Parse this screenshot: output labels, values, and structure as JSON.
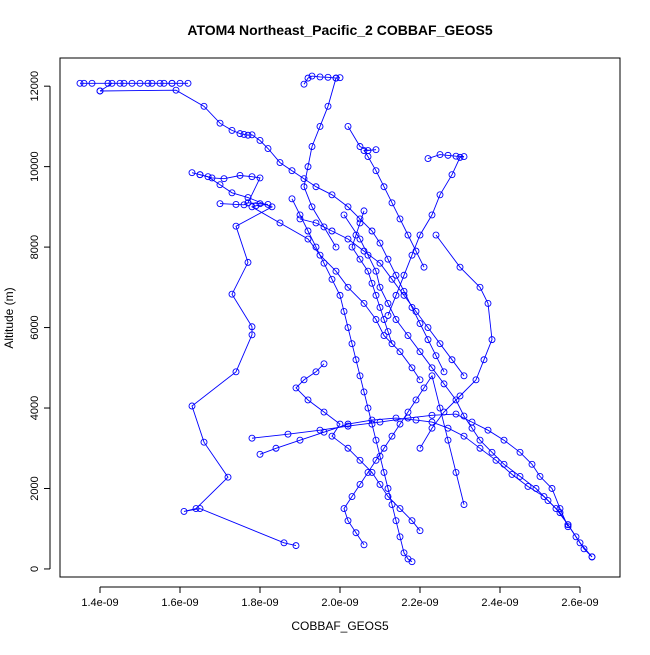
{
  "chart_data": {
    "type": "line",
    "title": "ATOM4 Northeast_Pacific_2 COBBAF_GEOS5",
    "xlabel": "COBBAF_GEOS5",
    "ylabel": "Altitude (m)",
    "xlim": [
      1.3e-09,
      2.7e-09
    ],
    "ylim": [
      -200,
      12700
    ],
    "grid": false,
    "x_ticks": [
      1.4e-09,
      1.6e-09,
      1.8e-09,
      2e-09,
      2.2e-09,
      2.4e-09,
      2.6e-09
    ],
    "x_tick_labels": [
      "1.4e-09",
      "1.6e-09",
      "1.8e-09",
      "2.0e-09",
      "2.2e-09",
      "2.4e-09",
      "2.6e-09"
    ],
    "y_ticks": [
      0,
      2000,
      4000,
      6000,
      8000,
      10000,
      12000
    ],
    "y_tick_labels": [
      "0",
      "2000",
      "4000",
      "6000",
      "8000",
      "10000",
      "12000"
    ],
    "color": "#0000ff",
    "series": [
      {
        "x": [
          1.89e-09,
          1.86e-09,
          1.65e-09,
          1.61e-09,
          1.64e-09,
          1.72e-09,
          1.66e-09,
          1.63e-09,
          1.74e-09,
          1.78e-09,
          1.78e-09,
          1.73e-09,
          1.77e-09,
          1.74e-09,
          1.83e-09,
          1.77e-09,
          1.73e-09,
          1.7e-09,
          1.67e-09,
          1.65e-09,
          1.63e-09
        ],
        "y": [
          580,
          650,
          1500,
          1430,
          1500,
          2280,
          3150,
          4050,
          4900,
          5820,
          6020,
          6830,
          7620,
          8520,
          9000,
          9230,
          9350,
          9550,
          9750,
          9800,
          9850
        ]
      },
      {
        "x": [
          1.65e-09,
          1.68e-09,
          1.71e-09,
          1.75e-09,
          1.78e-09,
          1.8e-09,
          1.77e-09,
          1.76e-09,
          1.74e-09,
          1.7e-09
        ],
        "y": [
          9800,
          9720,
          9700,
          9780,
          9750,
          9720,
          9100,
          9050,
          9060,
          9080
        ]
      },
      {
        "x": [
          1.77e-09,
          1.8e-09,
          1.82e-09,
          1.79e-09,
          1.78e-09,
          1.85e-09,
          1.92e-09,
          1.95e-09,
          1.99e-09,
          2.02e-09,
          2.06e-09,
          2.09e-09,
          2.11e-09,
          2.15e-09,
          2.18e-09,
          2.2e-09
        ],
        "y": [
          9100,
          9080,
          9060,
          9030,
          9000,
          8600,
          8200,
          7800,
          7400,
          7000,
          6600,
          6200,
          5800,
          5400,
          5000,
          4700
        ]
      },
      {
        "x": [
          1.35e-09,
          1.36e-09,
          1.38e-09,
          1.42e-09,
          1.45e-09,
          1.48e-09,
          1.52e-09,
          1.56e-09,
          1.58e-09,
          1.6e-09,
          1.62e-09,
          1.58e-09,
          1.55e-09,
          1.53e-09,
          1.5e-09,
          1.46e-09,
          1.43e-09,
          1.4e-09
        ],
        "y": [
          12070,
          12070,
          12070,
          12070,
          12070,
          12070,
          12070,
          12070,
          12070,
          12070,
          12070,
          12070,
          12070,
          12070,
          12070,
          12070,
          12070,
          11880
        ]
      },
      {
        "x": [
          1.4e-09,
          1.59e-09,
          1.66e-09,
          1.7e-09,
          1.73e-09,
          1.75e-09,
          1.76e-09,
          1.77e-09,
          1.78e-09,
          1.8e-09,
          1.82e-09,
          1.85e-09,
          1.88e-09,
          1.91e-09,
          1.94e-09,
          1.98e-09,
          2.02e-09,
          2.05e-09,
          2.08e-09,
          2.1e-09,
          2.12e-09,
          2.14e-09,
          2.16e-09,
          2.18e-09,
          2.2e-09,
          2.22e-09,
          2.24e-09,
          2.26e-09
        ],
        "y": [
          11880,
          11900,
          11500,
          11080,
          10900,
          10820,
          10800,
          10780,
          10790,
          10650,
          10450,
          10100,
          9900,
          9700,
          9500,
          9300,
          9000,
          8700,
          8400,
          8100,
          7700,
          7300,
          6900,
          6500,
          6100,
          5700,
          5300,
          4900
        ]
      },
      {
        "x": [
          2.01e-09,
          2.05e-09,
          2.07e-09,
          2.09e-09,
          2.1e-09,
          2.12e-09,
          2.14e-09,
          2.17e-09,
          2.2e-09,
          2.23e-09,
          2.26e-09,
          2.29e-09,
          2.31e-09,
          2.33e-09,
          2.35e-09,
          2.38e-09,
          2.41e-09,
          2.45e-09,
          2.49e-09,
          2.52e-09,
          2.55e-09,
          2.57e-09,
          2.59e-09,
          2.61e-09,
          2.63e-09
        ],
        "y": [
          8800,
          8200,
          7800,
          7400,
          7000,
          6600,
          6200,
          5800,
          5400,
          5000,
          4600,
          4200,
          3800,
          3500,
          3200,
          2900,
          2600,
          2300,
          2000,
          1700,
          1400,
          1100,
          800,
          500,
          300
        ]
      },
      {
        "x": [
          2.63e-09,
          2.6e-09,
          2.57e-09,
          2.54e-09,
          2.51e-09,
          2.47e-09,
          2.43e-09,
          2.39e-09,
          2.35e-09,
          2.31e-09,
          2.27e-09,
          2.23e-09,
          2.19e-09,
          2.14e-09,
          2.08e-09,
          2.02e-09,
          1.96e-09,
          1.9e-09,
          1.84e-09,
          1.8e-09
        ],
        "y": [
          300,
          650,
          1100,
          1500,
          1800,
          2050,
          2350,
          2700,
          3000,
          3300,
          3500,
          3650,
          3700,
          3750,
          3700,
          3600,
          3400,
          3200,
          3000,
          2850
        ]
      },
      {
        "x": [
          1.78e-09,
          1.87e-09,
          1.95e-09,
          2.02e-09,
          2.1e-09,
          2.17e-09,
          2.23e-09,
          2.29e-09,
          2.33e-09,
          2.37e-09,
          2.41e-09,
          2.45e-09,
          2.48e-09,
          2.5e-09,
          2.53e-09,
          2.55e-09,
          2.57e-09
        ],
        "y": [
          3250,
          3350,
          3450,
          3550,
          3650,
          3750,
          3820,
          3850,
          3650,
          3450,
          3200,
          2900,
          2600,
          2300,
          2000,
          1500,
          1050
        ]
      },
      {
        "x": [
          1.96e-09,
          1.94e-09,
          1.91e-09,
          1.89e-09,
          1.92e-09,
          1.96e-09,
          2e-09,
          1.98e-09,
          2.02e-09,
          2.05e-09,
          2.08e-09,
          2.1e-09,
          2.12e-09,
          2.15e-09,
          2.18e-09,
          2.2e-09
        ],
        "y": [
          5100,
          4900,
          4700,
          4500,
          4200,
          3900,
          3600,
          3300,
          3000,
          2700,
          2400,
          2100,
          1800,
          1500,
          1200,
          950
        ]
      },
      {
        "x": [
          2.06e-09,
          2.04e-09,
          2.02e-09,
          2.01e-09,
          2.03e-09,
          2.05e-09,
          2.07e-09,
          2.09e-09,
          2.11e-09,
          2.13e-09,
          2.15e-09,
          2.17e-09,
          2.19e-09,
          2.21e-09,
          2.23e-09,
          2.25e-09,
          2.27e-09,
          2.29e-09,
          2.31e-09
        ],
        "y": [
          600,
          900,
          1200,
          1500,
          1800,
          2100,
          2400,
          2700,
          3000,
          3300,
          3600,
          3900,
          4200,
          4500,
          4800,
          4000,
          3200,
          2400,
          1600
        ]
      },
      {
        "x": [
          2.18e-09,
          2.17e-09,
          2.16e-09,
          2.15e-09,
          2.14e-09,
          2.13e-09,
          2.12e-09,
          2.11e-09,
          2.1e-09,
          2.09e-09,
          2.08e-09,
          2.07e-09,
          2.06e-09,
          2.05e-09,
          2.04e-09,
          2.03e-09,
          2.02e-09,
          2.01e-09,
          2e-09,
          1.98e-09,
          1.96e-09,
          1.94e-09,
          1.92e-09,
          1.9e-09,
          1.88e-09
        ],
        "y": [
          180,
          250,
          400,
          800,
          1200,
          1600,
          2000,
          2400,
          2800,
          3200,
          3600,
          4000,
          4400,
          4800,
          5200,
          5600,
          6000,
          6400,
          6800,
          7200,
          7600,
          8000,
          8400,
          8800,
          9200
        ]
      },
      {
        "x": [
          1.91e-09,
          1.92e-09,
          1.93e-09,
          1.95e-09,
          1.97e-09,
          1.99e-09,
          2e-09,
          1.99e-09,
          1.97e-09,
          1.95e-09,
          1.93e-09,
          1.92e-09,
          1.91e-09,
          1.93e-09,
          1.96e-09,
          1.99e-09
        ],
        "y": [
          12050,
          12200,
          12250,
          12230,
          12220,
          12200,
          12210,
          12200,
          11500,
          11000,
          10500,
          10000,
          9500,
          9000,
          8500,
          8000
        ]
      },
      {
        "x": [
          2.02e-09,
          2.05e-09,
          2.07e-09,
          2.09e-09,
          2.06e-09,
          2.07e-09,
          2.09e-09,
          2.11e-09,
          2.13e-09,
          2.15e-09,
          2.17e-09,
          2.19e-09,
          2.21e-09
        ],
        "y": [
          11000,
          10500,
          10400,
          10420,
          10400,
          10250,
          9900,
          9500,
          9100,
          8700,
          8300,
          7900,
          7500
        ]
      },
      {
        "x": [
          2.22e-09,
          2.25e-09,
          2.27e-09,
          2.29e-09,
          2.31e-09,
          2.3e-09,
          2.28e-09,
          2.25e-09,
          2.23e-09,
          2.2e-09,
          2.18e-09,
          2.16e-09,
          2.14e-09,
          2.12e-09
        ],
        "y": [
          10200,
          10300,
          10280,
          10260,
          10250,
          10230,
          9800,
          9300,
          8800,
          8300,
          7800,
          7300,
          6800,
          6300
        ]
      },
      {
        "x": [
          2.24e-09,
          2.3e-09,
          2.35e-09,
          2.37e-09,
          2.38e-09,
          2.36e-09,
          2.34e-09,
          2.3e-09,
          2.26e-09,
          2.23e-09,
          2.2e-09
        ],
        "y": [
          8300,
          7500,
          7000,
          6600,
          5700,
          5200,
          4700,
          4300,
          3900,
          3500,
          3000
        ]
      },
      {
        "x": [
          2.06e-09,
          2.05e-09,
          2.04e-09,
          2.03e-09,
          2.05e-09,
          2.07e-09,
          2.08e-09,
          2.09e-09,
          2.1e-09,
          2.11e-09,
          2.12e-09,
          2.13e-09
        ],
        "y": [
          8900,
          8600,
          8300,
          8000,
          7700,
          7400,
          7100,
          6800,
          6500,
          6200,
          5900,
          5600
        ]
      },
      {
        "x": [
          1.9e-09,
          1.94e-09,
          1.98e-09,
          2.02e-09,
          2.06e-09,
          2.1e-09,
          2.13e-09,
          2.16e-09,
          2.19e-09,
          2.22e-09,
          2.25e-09,
          2.28e-09,
          2.31e-09
        ],
        "y": [
          8700,
          8600,
          8400,
          8200,
          7900,
          7600,
          7200,
          6800,
          6400,
          6000,
          5600,
          5200,
          4800
        ]
      }
    ]
  }
}
